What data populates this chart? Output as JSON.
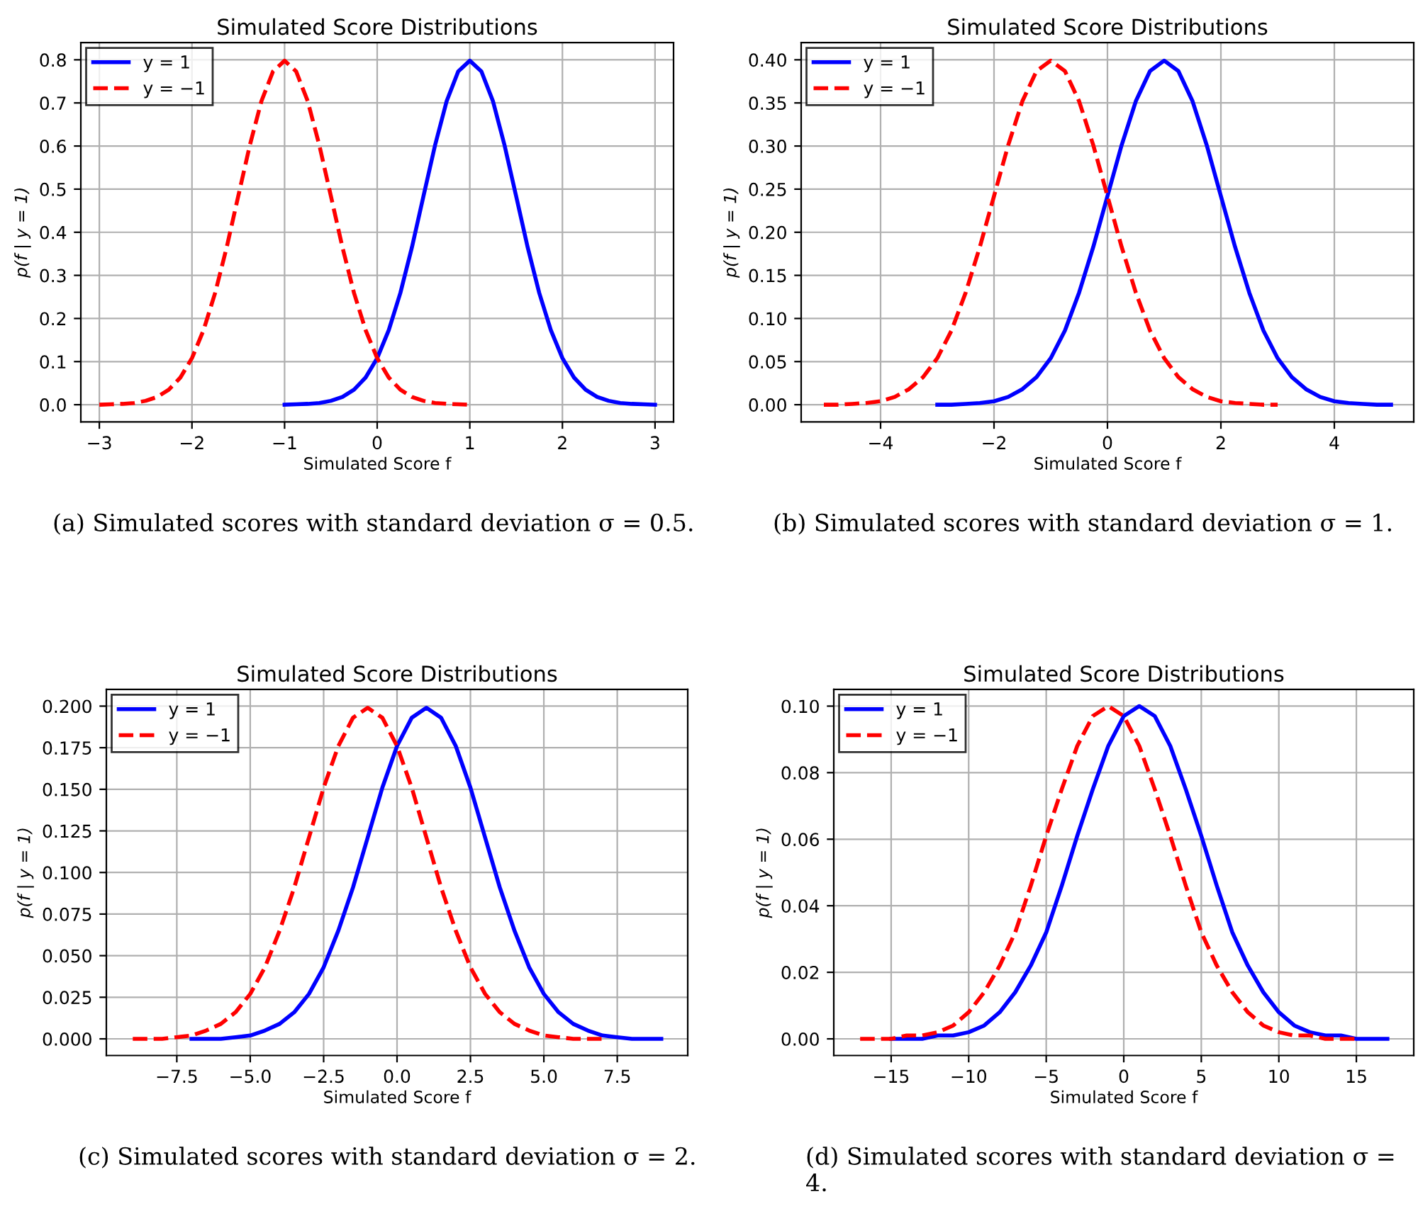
{
  "chart_data": [
    {
      "type": "line",
      "title": "Simulated Score Distributions",
      "xlabel": "Simulated Score f",
      "ylabel": "p(f | y = 1)",
      "grid": true,
      "legend": "top left",
      "xlim": [
        -3.2,
        3.2
      ],
      "ylim": [
        -0.04,
        0.84
      ],
      "xticks": [
        {
          "value": -3,
          "label": "−3"
        },
        {
          "value": -2,
          "label": "−2"
        },
        {
          "value": -1,
          "label": "−1"
        },
        {
          "value": 0,
          "label": "0"
        },
        {
          "value": 1,
          "label": "1"
        },
        {
          "value": 2,
          "label": "2"
        },
        {
          "value": 3,
          "label": "3"
        }
      ],
      "yticks": [
        {
          "value": 0,
          "label": "0.0"
        },
        {
          "value": 0.1,
          "label": "0.1"
        },
        {
          "value": 0.2,
          "label": "0.2"
        },
        {
          "value": 0.3,
          "label": "0.3"
        },
        {
          "value": 0.4,
          "label": "0.4"
        },
        {
          "value": 0.5,
          "label": "0.5"
        },
        {
          "value": 0.6,
          "label": "0.6"
        },
        {
          "value": 0.7,
          "label": "0.7"
        },
        {
          "value": 0.8,
          "label": "0.8"
        }
      ],
      "annotations": [
        "(a) Simulated scores with standard deviation σ = 0.5."
      ],
      "series": [
        {
          "name": "y = 1",
          "color": "#0000ff",
          "line_style": "solid",
          "x": [
            -1,
            -0.875,
            -0.75,
            -0.625,
            -0.5,
            -0.375,
            -0.25,
            -0.125,
            0,
            0.125,
            0.25,
            0.375,
            0.5,
            0.625,
            0.75,
            0.875,
            1,
            1.125,
            1.25,
            1.375,
            1.5,
            1.625,
            1.75,
            1.875,
            2,
            2.125,
            2.25,
            2.375,
            2.5,
            2.625,
            2.75,
            2.875,
            3
          ],
          "values": [
            0.0,
            0.001,
            0.002,
            0.004,
            0.009,
            0.018,
            0.035,
            0.063,
            0.108,
            0.173,
            0.259,
            0.365,
            0.484,
            0.602,
            0.704,
            0.773,
            0.798,
            0.773,
            0.704,
            0.602,
            0.484,
            0.365,
            0.259,
            0.173,
            0.108,
            0.063,
            0.035,
            0.018,
            0.009,
            0.004,
            0.002,
            0.001,
            0.0
          ]
        },
        {
          "name": "y = −1",
          "color": "#ff0000",
          "line_style": "dashed",
          "x": [
            -3,
            -2.875,
            -2.75,
            -2.625,
            -2.5,
            -2.375,
            -2.25,
            -2.125,
            -2,
            -1.875,
            -1.75,
            -1.625,
            -1.5,
            -1.375,
            -1.25,
            -1.125,
            -1,
            -0.875,
            -0.75,
            -0.625,
            -0.5,
            -0.375,
            -0.25,
            -0.125,
            0,
            0.125,
            0.25,
            0.375,
            0.5,
            0.625,
            0.75,
            0.875,
            1
          ],
          "values": [
            0.0,
            0.001,
            0.002,
            0.004,
            0.009,
            0.018,
            0.035,
            0.063,
            0.108,
            0.173,
            0.259,
            0.365,
            0.484,
            0.602,
            0.704,
            0.773,
            0.798,
            0.773,
            0.704,
            0.602,
            0.484,
            0.365,
            0.259,
            0.173,
            0.108,
            0.063,
            0.035,
            0.018,
            0.009,
            0.004,
            0.002,
            0.001,
            0.0
          ]
        }
      ]
    },
    {
      "type": "line",
      "title": "Simulated Score Distributions",
      "xlabel": "Simulated Score f",
      "ylabel": "p(f | y = 1)",
      "grid": true,
      "legend": "top left",
      "xlim": [
        -5.4,
        5.4
      ],
      "ylim": [
        -0.02,
        0.42
      ],
      "xticks": [
        {
          "value": -4,
          "label": "−4"
        },
        {
          "value": -2,
          "label": "−2"
        },
        {
          "value": 0,
          "label": "0"
        },
        {
          "value": 2,
          "label": "2"
        },
        {
          "value": 4,
          "label": "4"
        }
      ],
      "yticks": [
        {
          "value": 0,
          "label": "0.00"
        },
        {
          "value": 0.05,
          "label": "0.05"
        },
        {
          "value": 0.1,
          "label": "0.10"
        },
        {
          "value": 0.15,
          "label": "0.15"
        },
        {
          "value": 0.2,
          "label": "0.20"
        },
        {
          "value": 0.25,
          "label": "0.25"
        },
        {
          "value": 0.3,
          "label": "0.30"
        },
        {
          "value": 0.35,
          "label": "0.35"
        },
        {
          "value": 0.4,
          "label": "0.40"
        }
      ],
      "annotations": [
        "(b) Simulated scores with standard deviation σ = 1."
      ],
      "series": [
        {
          "name": "y = 1",
          "color": "#0000ff",
          "line_style": "solid",
          "x": [
            -3,
            -2.75,
            -2.5,
            -2.25,
            -2,
            -1.75,
            -1.5,
            -1.25,
            -1,
            -0.75,
            -0.5,
            -0.25,
            0,
            0.25,
            0.5,
            0.75,
            1,
            1.25,
            1.5,
            1.75,
            2,
            2.25,
            2.5,
            2.75,
            3,
            3.25,
            3.5,
            3.75,
            4,
            4.25,
            4.5,
            4.75,
            5
          ],
          "values": [
            0.0,
            0.0,
            0.001,
            0.002,
            0.004,
            0.009,
            0.018,
            0.032,
            0.054,
            0.086,
            0.13,
            0.183,
            0.242,
            0.301,
            0.352,
            0.387,
            0.399,
            0.387,
            0.352,
            0.301,
            0.242,
            0.183,
            0.13,
            0.086,
            0.054,
            0.032,
            0.018,
            0.009,
            0.004,
            0.002,
            0.001,
            0.0,
            0.0
          ]
        },
        {
          "name": "y = −1",
          "color": "#ff0000",
          "line_style": "dashed",
          "x": [
            -5,
            -4.75,
            -4.5,
            -4.25,
            -4,
            -3.75,
            -3.5,
            -3.25,
            -3,
            -2.75,
            -2.5,
            -2.25,
            -2,
            -1.75,
            -1.5,
            -1.25,
            -1,
            -0.75,
            -0.5,
            -0.25,
            0,
            0.25,
            0.5,
            0.75,
            1,
            1.25,
            1.5,
            1.75,
            2,
            2.25,
            2.5,
            2.75,
            3
          ],
          "values": [
            0.0,
            0.0,
            0.001,
            0.002,
            0.004,
            0.009,
            0.018,
            0.032,
            0.054,
            0.086,
            0.13,
            0.183,
            0.242,
            0.301,
            0.352,
            0.387,
            0.399,
            0.387,
            0.352,
            0.301,
            0.242,
            0.183,
            0.13,
            0.086,
            0.054,
            0.032,
            0.018,
            0.009,
            0.004,
            0.002,
            0.001,
            0.0,
            0.0
          ]
        }
      ]
    },
    {
      "type": "line",
      "title": "Simulated Score Distributions",
      "xlabel": "Simulated Score f",
      "ylabel": "p(f | y = 1)",
      "grid": true,
      "legend": "top left",
      "xlim": [
        -9.9,
        9.9
      ],
      "ylim": [
        -0.01,
        0.21
      ],
      "xticks": [
        {
          "value": -7.5,
          "label": "−7.5"
        },
        {
          "value": -5,
          "label": "−5.0"
        },
        {
          "value": -2.5,
          "label": "−2.5"
        },
        {
          "value": 0,
          "label": "0.0"
        },
        {
          "value": 2.5,
          "label": "2.5"
        },
        {
          "value": 5,
          "label": "5.0"
        },
        {
          "value": 7.5,
          "label": "7.5"
        }
      ],
      "yticks": [
        {
          "value": 0,
          "label": "0.000"
        },
        {
          "value": 0.025,
          "label": "0.025"
        },
        {
          "value": 0.05,
          "label": "0.050"
        },
        {
          "value": 0.075,
          "label": "0.075"
        },
        {
          "value": 0.1,
          "label": "0.100"
        },
        {
          "value": 0.125,
          "label": "0.125"
        },
        {
          "value": 0.15,
          "label": "0.150"
        },
        {
          "value": 0.175,
          "label": "0.175"
        },
        {
          "value": 0.2,
          "label": "0.200"
        }
      ],
      "annotations": [
        "(c) Simulated scores with standard deviation σ = 2."
      ],
      "series": [
        {
          "name": "y = 1",
          "color": "#0000ff",
          "line_style": "solid",
          "x": [
            -7,
            -6.5,
            -6,
            -5.5,
            -5,
            -4.5,
            -4,
            -3.5,
            -3,
            -2.5,
            -2,
            -1.5,
            -1,
            -0.5,
            0,
            0.5,
            1,
            1.5,
            2,
            2.5,
            3,
            3.5,
            4,
            4.5,
            5,
            5.5,
            6,
            6.5,
            7,
            7.5,
            8,
            8.5,
            9
          ],
          "values": [
            0.0,
            0.0,
            0.0,
            0.001,
            0.002,
            0.005,
            0.009,
            0.016,
            0.027,
            0.043,
            0.065,
            0.091,
            0.121,
            0.151,
            0.176,
            0.193,
            0.199,
            0.193,
            0.176,
            0.151,
            0.121,
            0.091,
            0.065,
            0.043,
            0.027,
            0.016,
            0.009,
            0.005,
            0.002,
            0.001,
            0.0,
            0.0,
            0.0
          ]
        },
        {
          "name": "y = −1",
          "color": "#ff0000",
          "line_style": "dashed",
          "x": [
            -9,
            -8.5,
            -8,
            -7.5,
            -7,
            -6.5,
            -6,
            -5.5,
            -5,
            -4.5,
            -4,
            -3.5,
            -3,
            -2.5,
            -2,
            -1.5,
            -1,
            -0.5,
            0,
            0.5,
            1,
            1.5,
            2,
            2.5,
            3,
            3.5,
            4,
            4.5,
            5,
            5.5,
            6,
            6.5,
            7
          ],
          "values": [
            0.0,
            0.0,
            0.0,
            0.001,
            0.002,
            0.005,
            0.009,
            0.016,
            0.027,
            0.043,
            0.065,
            0.091,
            0.121,
            0.151,
            0.176,
            0.193,
            0.199,
            0.193,
            0.176,
            0.151,
            0.121,
            0.091,
            0.065,
            0.043,
            0.027,
            0.016,
            0.009,
            0.005,
            0.002,
            0.001,
            0.0,
            0.0,
            0.0
          ]
        }
      ]
    },
    {
      "type": "line",
      "title": "Simulated Score Distributions",
      "xlabel": "Simulated Score f",
      "ylabel": "p(f | y = 1)",
      "grid": true,
      "legend": "top left",
      "xlim": [
        -18.7,
        18.7
      ],
      "ylim": [
        -0.005,
        0.105
      ],
      "xticks": [
        {
          "value": -15,
          "label": "−15"
        },
        {
          "value": -10,
          "label": "−10"
        },
        {
          "value": -5,
          "label": "−5"
        },
        {
          "value": 0,
          "label": "0"
        },
        {
          "value": 5,
          "label": "5"
        },
        {
          "value": 10,
          "label": "10"
        },
        {
          "value": 15,
          "label": "15"
        }
      ],
      "yticks": [
        {
          "value": 0,
          "label": "0.00"
        },
        {
          "value": 0.02,
          "label": "0.02"
        },
        {
          "value": 0.04,
          "label": "0.04"
        },
        {
          "value": 0.06,
          "label": "0.06"
        },
        {
          "value": 0.08,
          "label": "0.08"
        },
        {
          "value": 0.1,
          "label": "0.10"
        }
      ],
      "annotations": [
        "(d) Simulated scores with standard deviation σ = 4."
      ],
      "series": [
        {
          "name": "y = 1",
          "color": "#0000ff",
          "line_style": "solid",
          "x": [
            -15,
            -14,
            -13,
            -12,
            -11,
            -10,
            -9,
            -8,
            -7,
            -6,
            -5,
            -4,
            -3,
            -2,
            -1,
            0,
            1,
            2,
            3,
            4,
            5,
            6,
            7,
            8,
            9,
            10,
            11,
            12,
            13,
            14,
            15,
            16,
            17
          ],
          "values": [
            0.0,
            0.0,
            0.0,
            0.001,
            0.001,
            0.002,
            0.004,
            0.008,
            0.014,
            0.022,
            0.032,
            0.046,
            0.061,
            0.075,
            0.088,
            0.097,
            0.1,
            0.097,
            0.088,
            0.075,
            0.061,
            0.046,
            0.032,
            0.022,
            0.014,
            0.008,
            0.004,
            0.002,
            0.001,
            0.001,
            0.0,
            0.0,
            0.0
          ]
        },
        {
          "name": "y = −1",
          "color": "#ff0000",
          "line_style": "dashed",
          "x": [
            -17,
            -16,
            -15,
            -14,
            -13,
            -12,
            -11,
            -10,
            -9,
            -8,
            -7,
            -6,
            -5,
            -4,
            -3,
            -2,
            -1,
            0,
            1,
            2,
            3,
            4,
            5,
            6,
            7,
            8,
            9,
            10,
            11,
            12,
            13,
            14,
            15
          ],
          "values": [
            0.0,
            0.0,
            0.0,
            0.001,
            0.001,
            0.002,
            0.004,
            0.008,
            0.014,
            0.022,
            0.032,
            0.046,
            0.061,
            0.075,
            0.088,
            0.097,
            0.1,
            0.097,
            0.088,
            0.075,
            0.061,
            0.046,
            0.032,
            0.022,
            0.014,
            0.008,
            0.004,
            0.002,
            0.001,
            0.001,
            0.0,
            0.0,
            0.0
          ]
        }
      ]
    }
  ]
}
